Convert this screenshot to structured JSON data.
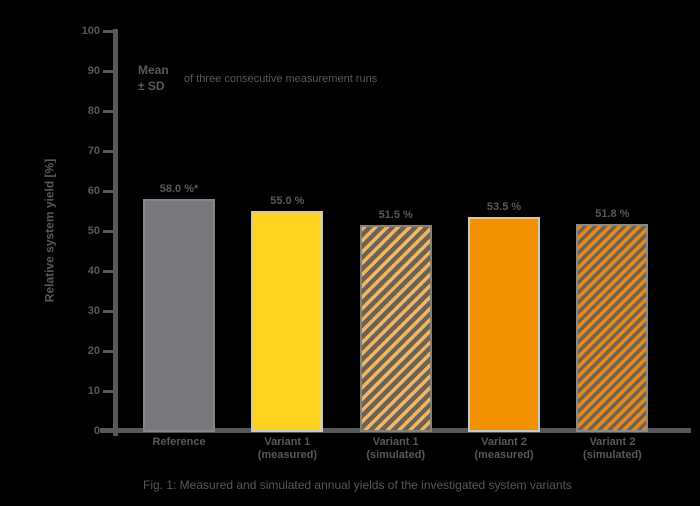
{
  "background_color": "#000000",
  "text_color": "#58585a",
  "chart_data": {
    "type": "bar",
    "title": "",
    "ylabel": "Relative system yield [%]",
    "xlabel": "",
    "ylim": [
      0,
      100
    ],
    "yticks": [
      0,
      10,
      20,
      30,
      40,
      50,
      60,
      70,
      80,
      90,
      100
    ],
    "grid": false,
    "legend": null,
    "categories": [
      [
        "Reference"
      ],
      [
        "Variant 1",
        "(measured)"
      ],
      [
        "Variant 1",
        "(simulated)"
      ],
      [
        "Variant 2",
        "(measured)"
      ],
      [
        "Variant 2",
        "(simulated)"
      ]
    ],
    "values": [
      58.0,
      55.0,
      51.5,
      53.5,
      51.8
    ],
    "value_labels": [
      "58.0 %*",
      "55.0 %",
      "51.5 %",
      "53.5 %",
      "51.8 %"
    ],
    "bar_styles": [
      {
        "fill": "#77787b",
        "border": "#85868a",
        "hatch": false,
        "hatch_color": "",
        "hatch_period": 0
      },
      {
        "fill": "#ffd21f",
        "border": "#c9c9c9",
        "hatch": false,
        "hatch_color": "",
        "hatch_period": 0
      },
      {
        "fill": "#f2b465",
        "border": "#87817a",
        "hatch": true,
        "hatch_color": "#6b6353",
        "hatch_period": 8
      },
      {
        "fill": "#f29100",
        "border": "#c9c9c9",
        "hatch": false,
        "hatch_color": "",
        "hatch_period": 0
      },
      {
        "fill": "#e98a1e",
        "border": "#8a8a8a",
        "hatch": true,
        "hatch_color": "#6f6352",
        "hatch_period": 7
      }
    ]
  },
  "annotation": {
    "line1": "Mean",
    "line2": "± SD",
    "text": "of three consecutive measurement runs"
  },
  "caption": "Fig. 1: Measured and simulated annual yields of the investigated system variants"
}
